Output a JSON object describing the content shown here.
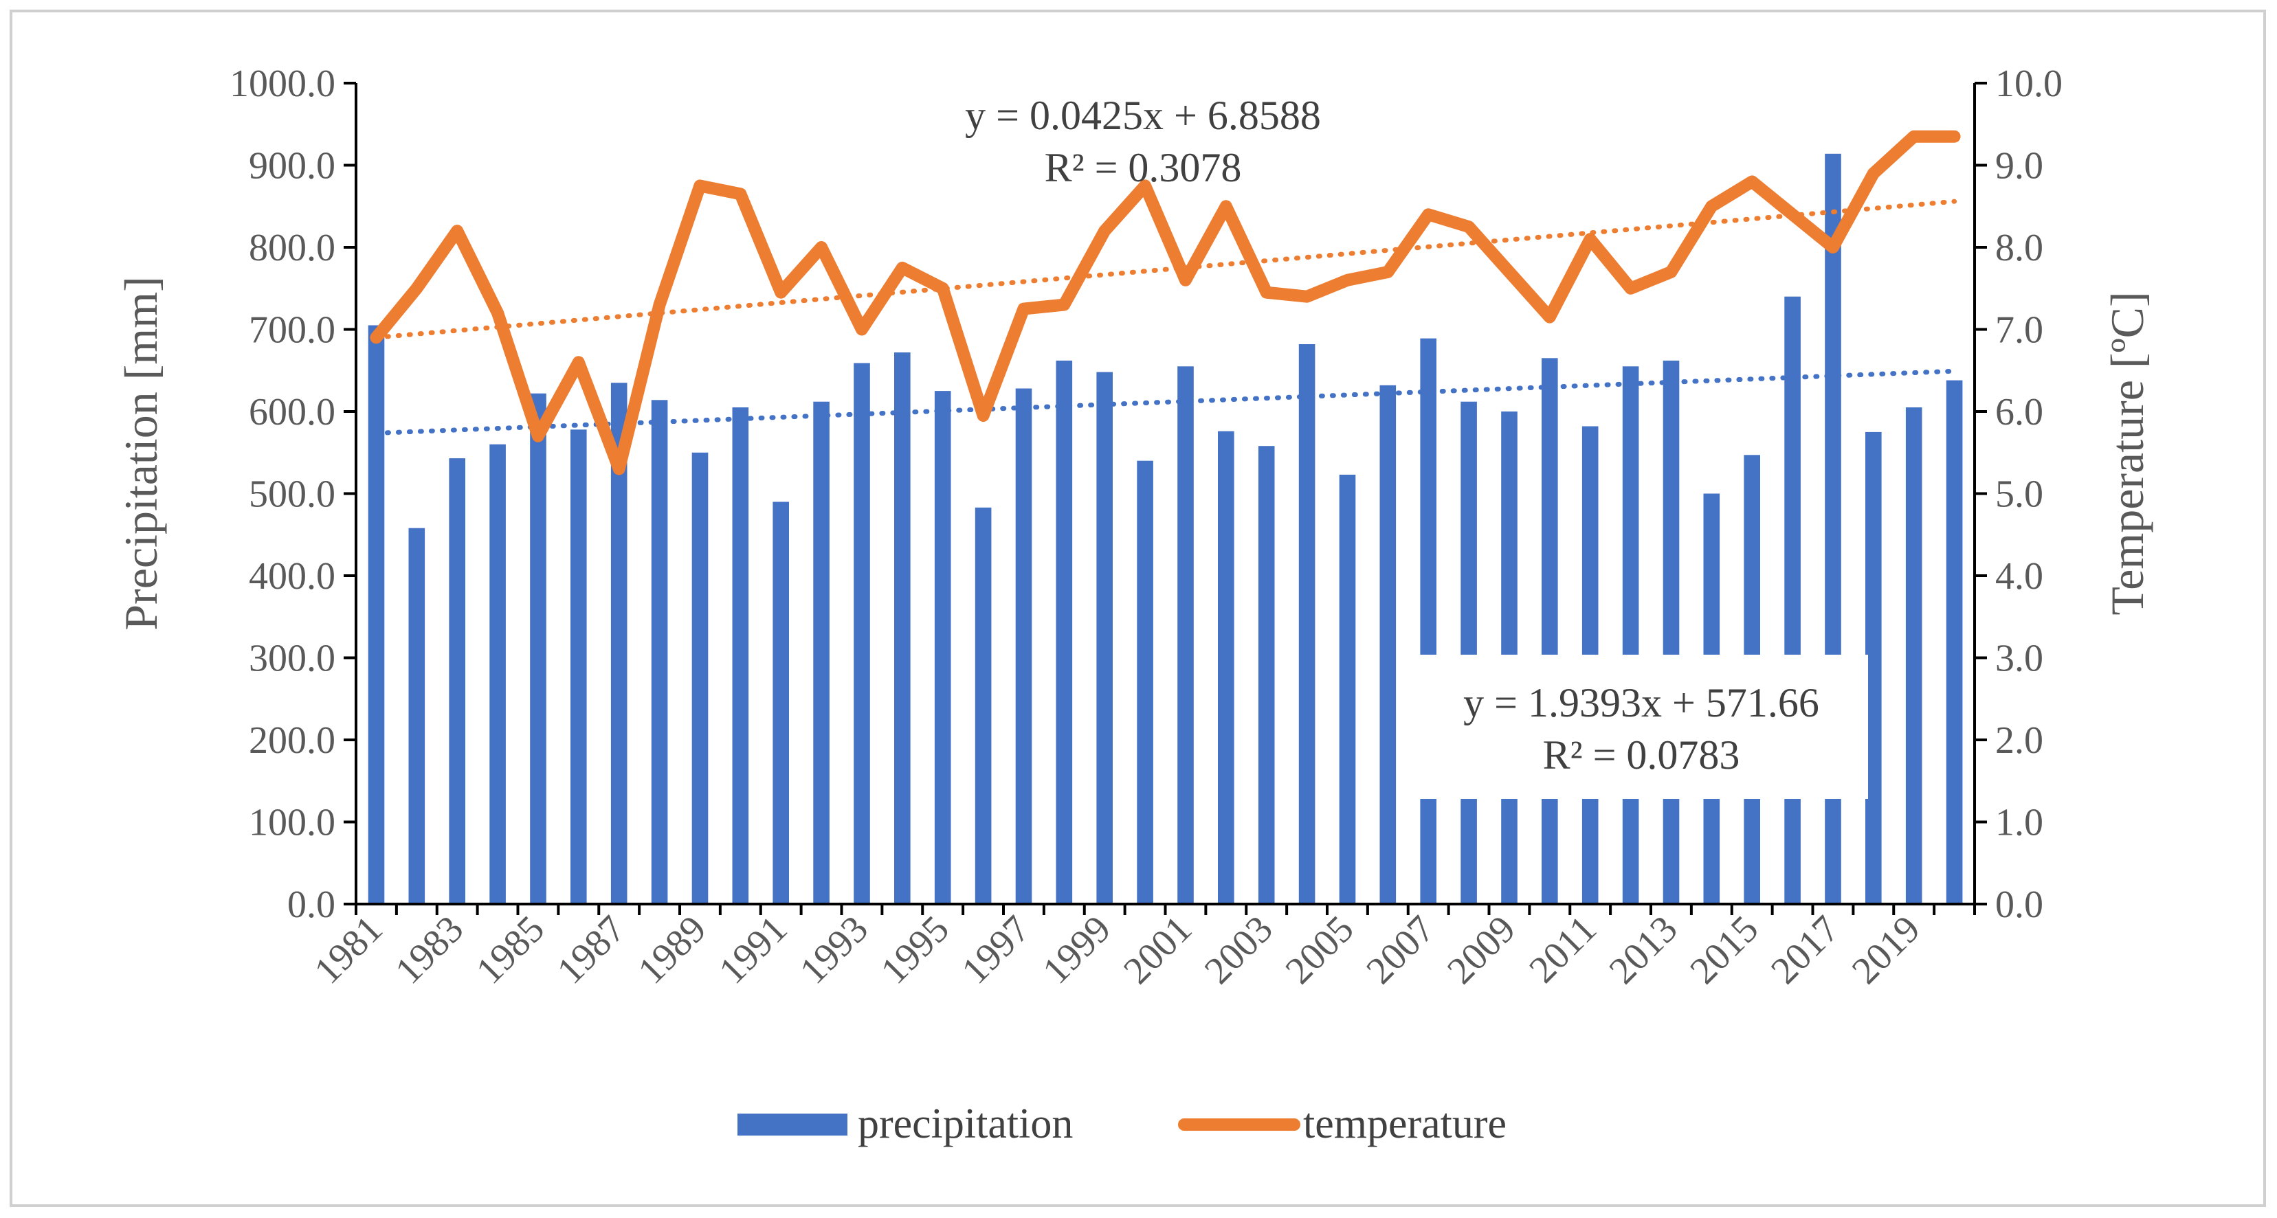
{
  "chart_data": {
    "type": "bar+line",
    "title": "",
    "xlabel": "",
    "ylabel": "Precipitation [mm]",
    "ylabel_right": "Temperature [ºC]",
    "ylim": [
      0,
      1000
    ],
    "ylim_right": [
      0,
      10
    ],
    "yticks": [
      "0.0",
      "100.0",
      "200.0",
      "300.0",
      "400.0",
      "500.0",
      "600.0",
      "700.0",
      "800.0",
      "900.0",
      "1000.0"
    ],
    "yticks_right": [
      "0.0",
      "1.0",
      "2.0",
      "3.0",
      "4.0",
      "5.0",
      "6.0",
      "7.0",
      "8.0",
      "9.0",
      "10.0"
    ],
    "grid": false,
    "legend_position": "bottom",
    "years": [
      1981,
      1982,
      1983,
      1984,
      1985,
      1986,
      1987,
      1988,
      1989,
      1990,
      1991,
      1992,
      1993,
      1994,
      1995,
      1996,
      1997,
      1998,
      1999,
      2000,
      2001,
      2002,
      2003,
      2004,
      2005,
      2006,
      2007,
      2008,
      2009,
      2010,
      2011,
      2012,
      2013,
      2014,
      2015,
      2016,
      2017,
      2018,
      2019,
      2020
    ],
    "x_tick_labels": [
      "1981",
      "1983",
      "1985",
      "1987",
      "1989",
      "1991",
      "1993",
      "1995",
      "1997",
      "1999",
      "2001",
      "2003",
      "2005",
      "2007",
      "2009",
      "2011",
      "2013",
      "2015",
      "2017",
      "2019"
    ],
    "series": [
      {
        "name": "precipitation",
        "kind": "bar",
        "axis": "left",
        "color": "#4472C4",
        "values": [
          705,
          458,
          543,
          560,
          622,
          578,
          635,
          614,
          550,
          605,
          490,
          612,
          659,
          672,
          625,
          483,
          628,
          662,
          648,
          540,
          655,
          576,
          558,
          682,
          523,
          632,
          689,
          612,
          600,
          665,
          582,
          655,
          662,
          500,
          547,
          740,
          914,
          575,
          605,
          638
        ]
      },
      {
        "name": "temperature",
        "kind": "line",
        "axis": "right",
        "color": "#ED7D31",
        "values": [
          6.9,
          7.5,
          8.2,
          7.2,
          5.7,
          6.6,
          5.3,
          7.3,
          8.75,
          8.65,
          7.45,
          8.0,
          7.0,
          7.75,
          7.5,
          5.95,
          7.25,
          7.3,
          8.2,
          8.75,
          7.6,
          8.5,
          7.45,
          7.4,
          7.6,
          7.7,
          8.4,
          8.25,
          7.7,
          7.15,
          8.1,
          7.5,
          7.7,
          8.5,
          8.8,
          8.4,
          8.0,
          8.9,
          9.35,
          9.35
        ]
      }
    ],
    "trendlines": [
      {
        "series": "temperature",
        "color": "#ED7D31",
        "slope": 0.0425,
        "intercept": 6.8588,
        "equation": "y = 0.0425x + 6.8588",
        "r2": "R² = 0.3078"
      },
      {
        "series": "precipitation",
        "color": "#4472C4",
        "slope": 1.9393,
        "intercept": 571.66,
        "equation": "y = 1.9393x + 571.66",
        "r2": "R² = 0.0783"
      }
    ],
    "legend": [
      {
        "label": "precipitation",
        "color": "#4472C4",
        "kind": "bar"
      },
      {
        "label": "temperature",
        "color": "#ED7D31",
        "kind": "line"
      }
    ]
  }
}
